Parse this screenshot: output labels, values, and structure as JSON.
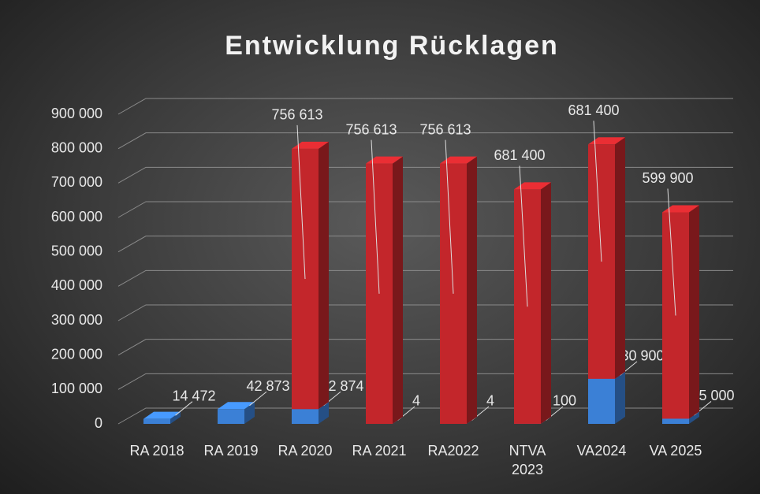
{
  "chart_data": {
    "type": "bar3d_stacked",
    "title": "Entwicklung Rücklagen",
    "categories": [
      "RA 2018",
      "RA 2019",
      "RA 2020",
      "RA 2021",
      "RA2022",
      "NTVA\n2023",
      "VA2024",
      "VA 2025"
    ],
    "series": [
      {
        "color": "#3b80d6",
        "values": [
          14472,
          42873,
          42874,
          4,
          4,
          100,
          130900,
          15000
        ],
        "value_labels": [
          "14 472",
          "42 873",
          "42 874",
          "4",
          "4",
          "100",
          "130 900",
          "15 000"
        ]
      },
      {
        "color": "#c3262b",
        "values": [
          null,
          null,
          756613,
          756613,
          756613,
          681400,
          681400,
          599900
        ],
        "value_labels": [
          null,
          null,
          "756 613",
          "756 613",
          "756 613",
          "681 400",
          "681 400",
          "599 900"
        ]
      }
    ],
    "ylim": [
      0,
      900000
    ],
    "yticks": [
      0,
      {
        "value": 100000,
        "label": "100 000"
      },
      {
        "value": 200000,
        "label": "200 000"
      },
      {
        "value": 300000,
        "label": "300 000"
      },
      {
        "value": 400000,
        "label": "400 000"
      },
      {
        "value": 500000,
        "label": "500 000"
      },
      {
        "value": 600000,
        "label": "600 000"
      },
      {
        "value": 700000,
        "label": "700 000"
      },
      {
        "value": 800000,
        "label": "800 000"
      },
      {
        "value": 900000,
        "label": "900 000"
      }
    ],
    "grid": true
  }
}
